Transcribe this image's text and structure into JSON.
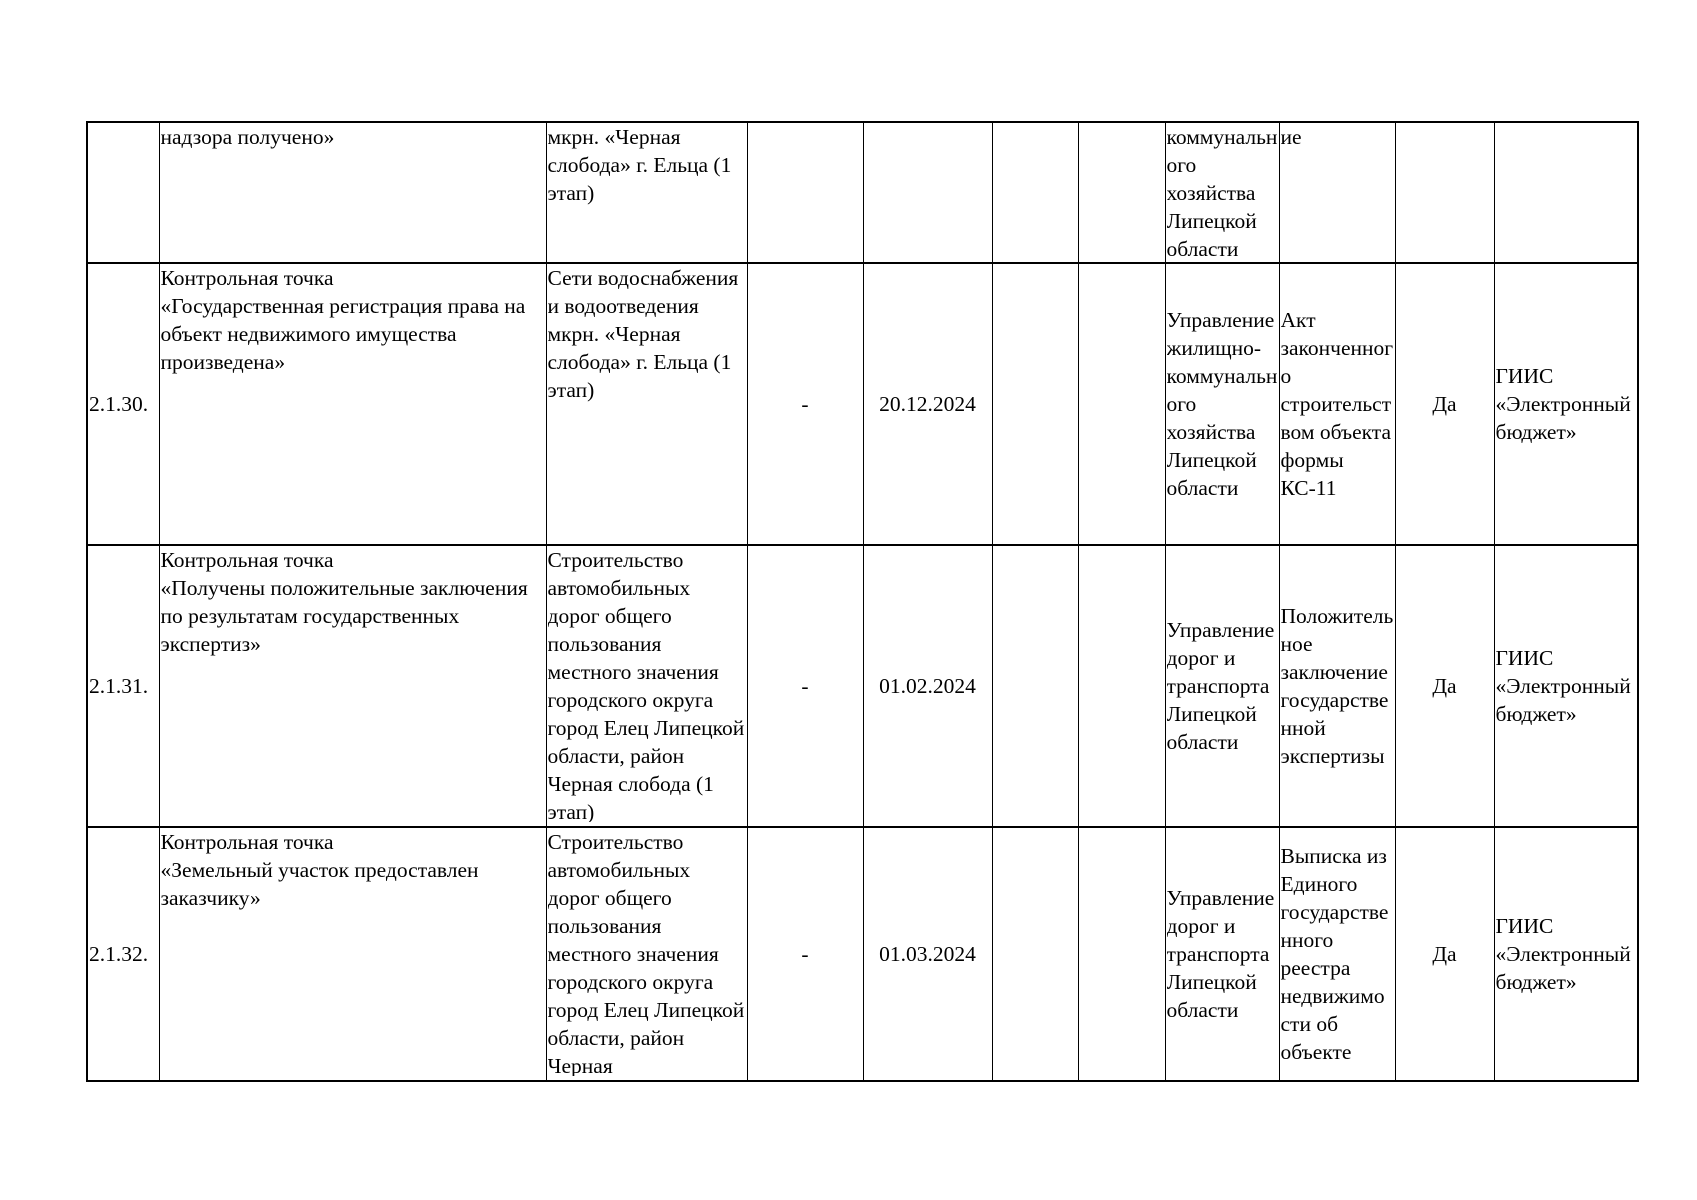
{
  "table": {
    "rows": [
      {
        "num": "",
        "name": "надзора получено»",
        "object": "мкрн. «Черная слобода» г. Ельца (1 этап)",
        "start": "",
        "end": "",
        "c6": "",
        "c7": "",
        "responsible": "коммунального хозяйства Липецкой области",
        "document": "ие",
        "flag": "",
        "system": ""
      },
      {
        "num": "2.1.30.",
        "name": "Контрольная точка\n«Государственная регистрация права на объект недвижимого имущества произведена»",
        "object": "Сети водоснабжения и водоотведения мкрн. «Черная слобода» г. Ельца (1 этап)",
        "start": "-",
        "end": "20.12.2024",
        "c6": "",
        "c7": "",
        "responsible": "Управление жилищно-коммунального хозяйства Липецкой области",
        "document": "Акт законченного строительством объекта формы КС-11",
        "flag": "Да",
        "system": "ГИИС «Электронный бюджет»"
      },
      {
        "num": "2.1.31.",
        "name": "Контрольная точка\n«Получены положительные заключения по результатам государственных экспертиз»",
        "object": "Строительство автомобильных дорог общего пользования местного значения городского округа город Елец Липецкой области, район Черная слобода (1 этап)",
        "start": "-",
        "end": "01.02.2024",
        "c6": "",
        "c7": "",
        "responsible": "Управление дорог и транспорта Липецкой области",
        "document": "Положительное заключение государственной экспертизы",
        "flag": "Да",
        "system": "ГИИС «Электронный бюджет»"
      },
      {
        "num": "2.1.32.",
        "name": "Контрольная точка\n«Земельный участок предоставлен заказчику»",
        "object": "Строительство автомобильных дорог общего пользования местного значения городского округа город Елец Липецкой области, район Черная",
        "start": "-",
        "end": "01.03.2024",
        "c6": "",
        "c7": "",
        "responsible": "Управление дорог и транспорта Липецкой области",
        "document": "Выписка из Единого государственного реестра недвижимости об объекте",
        "flag": "Да",
        "system": "ГИИС «Электронный бюджет»"
      }
    ]
  }
}
